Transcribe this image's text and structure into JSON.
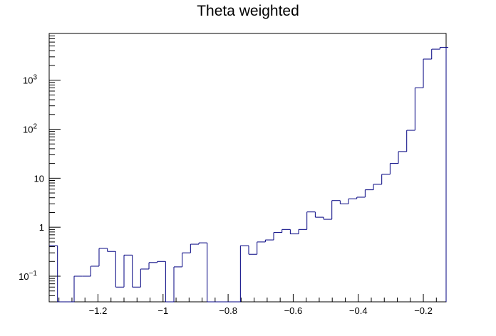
{
  "chart_data": {
    "type": "histogram",
    "title": "Theta weighted",
    "xlabel": "",
    "ylabel": "",
    "log_y": true,
    "xlim": [
      -1.35,
      -0.13
    ],
    "ylim": [
      0.03,
      9000
    ],
    "x_ticks": [
      {
        "value": -1.2,
        "label": "−1.2"
      },
      {
        "value": -1.0,
        "label": "−1"
      },
      {
        "value": -0.8,
        "label": "−0.8"
      },
      {
        "value": -0.6,
        "label": "−0.6"
      },
      {
        "value": -0.4,
        "label": "−0.4"
      },
      {
        "value": -0.2,
        "label": "−0.2"
      }
    ],
    "y_ticks": [
      {
        "value": 0.1,
        "base": "10",
        "exp": "−1"
      },
      {
        "value": 1,
        "base": "1",
        "exp": ""
      },
      {
        "value": 10,
        "base": "10",
        "exp": ""
      },
      {
        "value": 100,
        "base": "10",
        "exp": "2"
      },
      {
        "value": 1000,
        "base": "10",
        "exp": "3"
      }
    ],
    "line_color": "#000080",
    "bin_edges": [
      -1.35,
      -1.3244,
      -1.2989,
      -1.2733,
      -1.2478,
      -1.2222,
      -1.1967,
      -1.1711,
      -1.1456,
      -1.12,
      -1.0944,
      -1.0689,
      -1.0433,
      -1.0178,
      -0.9922,
      -0.9667,
      -0.9411,
      -0.9156,
      -0.89,
      -0.8644,
      -0.8389,
      -0.8133,
      -0.7878,
      -0.7622,
      -0.7367,
      -0.7111,
      -0.6856,
      -0.66,
      -0.6344,
      -0.6089,
      -0.5833,
      -0.5578,
      -0.5322,
      -0.5067,
      -0.4811,
      -0.4556,
      -0.43,
      -0.4044,
      -0.3789,
      -0.3533,
      -0.3278,
      -0.3022,
      -0.2767,
      -0.2511,
      -0.2256,
      -0.2,
      -0.1744,
      -0.1489,
      -0.1233
    ],
    "counts": [
      0.42,
      0,
      0,
      0.1,
      0.1,
      0.16,
      0.37,
      0.32,
      0.06,
      0.27,
      0.06,
      0.14,
      0.19,
      0.2,
      0,
      0.155,
      0.3,
      0.45,
      0.48,
      0,
      0,
      0,
      0,
      0.42,
      0.28,
      0.5,
      0.55,
      0.78,
      0.9,
      0.73,
      0.9,
      2.05,
      1.6,
      1.45,
      3.5,
      3.0,
      3.8,
      4.1,
      5.8,
      7.5,
      12,
      20,
      35,
      95,
      700,
      2700,
      4300,
      4700
    ]
  }
}
